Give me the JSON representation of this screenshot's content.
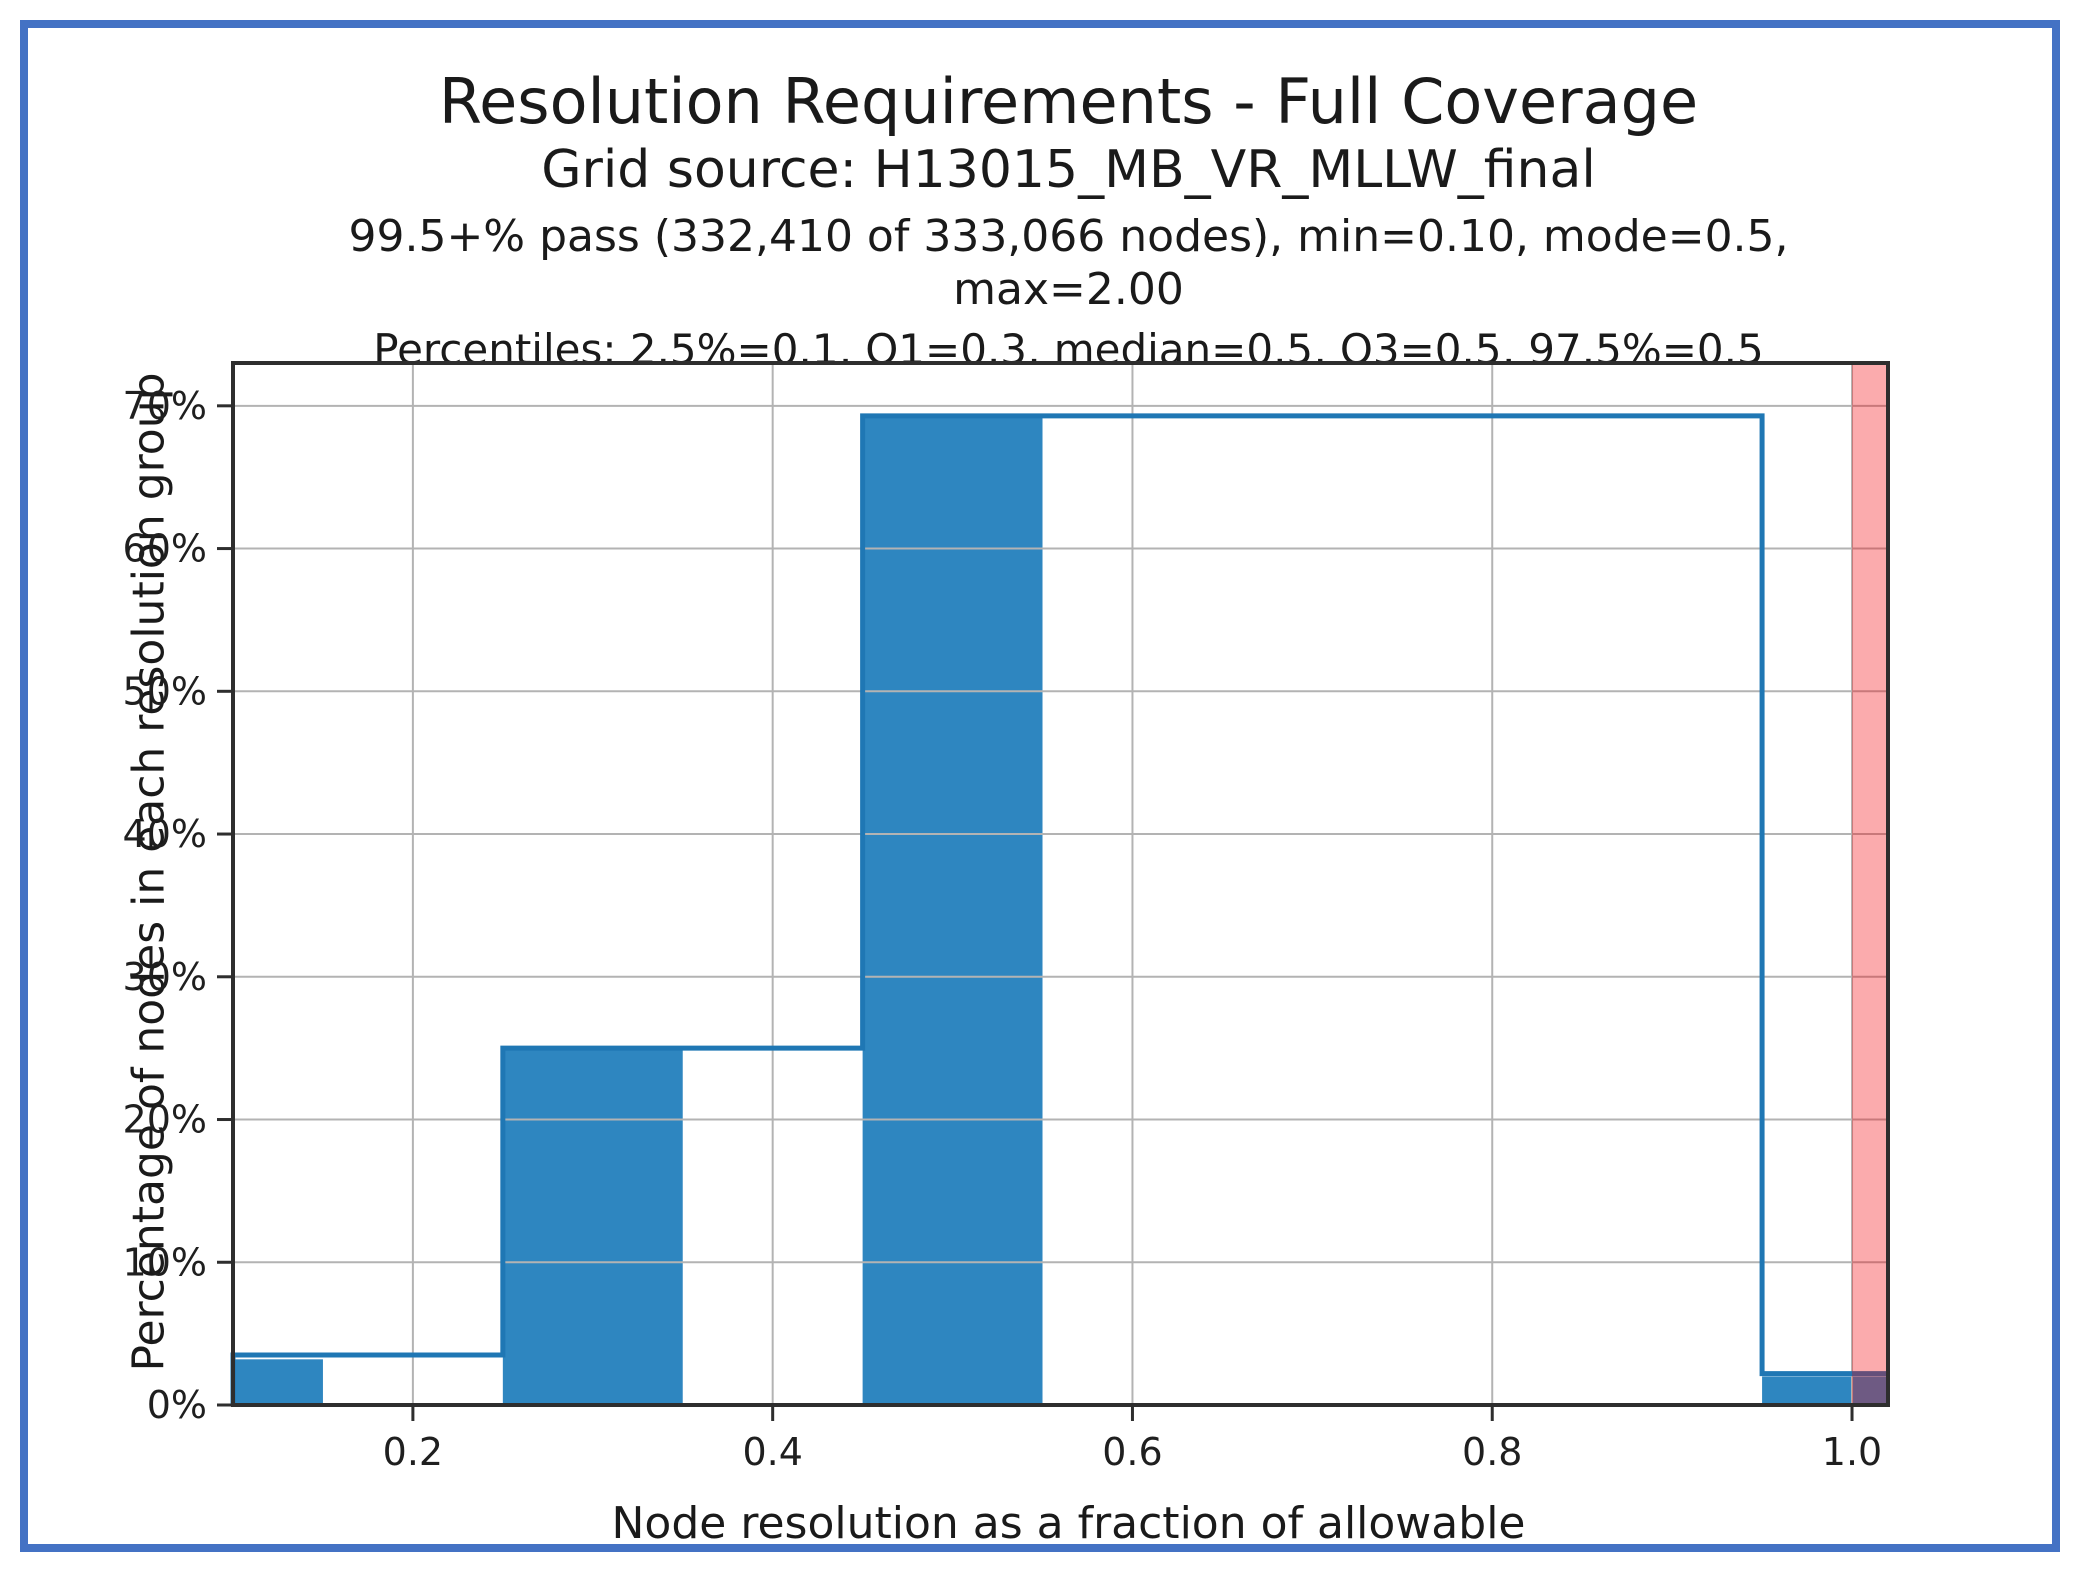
{
  "header": {
    "title": "Resolution Requirements - Full Coverage",
    "subtitle": "Grid source: H13015_MB_VR_MLLW_final",
    "stats_line": "99.5+% pass (332,410 of 333,066 nodes), min=0.10, mode=0.5, max=2.00",
    "percentiles_line": "Percentiles: 2.5%=0.1, Q1=0.3, median=0.5, Q3=0.5, 97.5%=0.5"
  },
  "chart_data": {
    "type": "bar",
    "variant": "histogram with step outline and fail band",
    "title": "Resolution Requirements - Full Coverage",
    "subtitle": "Grid source: H13015_MB_VR_MLLW_final",
    "xlabel": "Node resolution as a fraction of allowable",
    "ylabel": "Percentage of nodes in each resolution group",
    "xlim": [
      0.1,
      1.02
    ],
    "ylim": [
      0,
      73
    ],
    "grid": true,
    "legend_position": "none",
    "x_ticks": [
      0.2,
      0.4,
      0.6,
      0.8,
      1.0
    ],
    "x_tick_labels": [
      "0.2",
      "0.4",
      "0.6",
      "0.8",
      "1.0"
    ],
    "y_ticks": [
      0,
      10,
      20,
      30,
      40,
      50,
      60,
      70
    ],
    "y_tick_labels": [
      "0%",
      "10%",
      "20%",
      "30%",
      "40%",
      "50%",
      "60%",
      "70%"
    ],
    "filled_bars": [
      {
        "x0": 0.1,
        "x1": 0.15,
        "pct": 3.2
      },
      {
        "x0": 0.25,
        "x1": 0.35,
        "pct": 25.0
      },
      {
        "x0": 0.45,
        "x1": 0.55,
        "pct": 69.3
      },
      {
        "x0": 0.95,
        "x1": 1.02,
        "pct": 2.0
      }
    ],
    "step_outline": [
      {
        "x0": 0.1,
        "x1": 0.25,
        "pct": 3.5
      },
      {
        "x0": 0.25,
        "x1": 0.45,
        "pct": 25.0
      },
      {
        "x0": 0.45,
        "x1": 0.95,
        "pct": 69.3
      },
      {
        "x0": 0.95,
        "x1": 1.02,
        "pct": 2.2
      }
    ],
    "fail_band": {
      "x0": 1.0,
      "x1": 1.02
    },
    "colors": {
      "bar_fill": "#2e86c0",
      "step_line": "#1f77b4",
      "fail_band": "#f30006",
      "fail_band_alpha": 0.33,
      "grid": "#b3b3b3",
      "spine": "#2e2e2e",
      "tick_label": "#1f1f1f",
      "figure_border": "#4472c4"
    }
  }
}
